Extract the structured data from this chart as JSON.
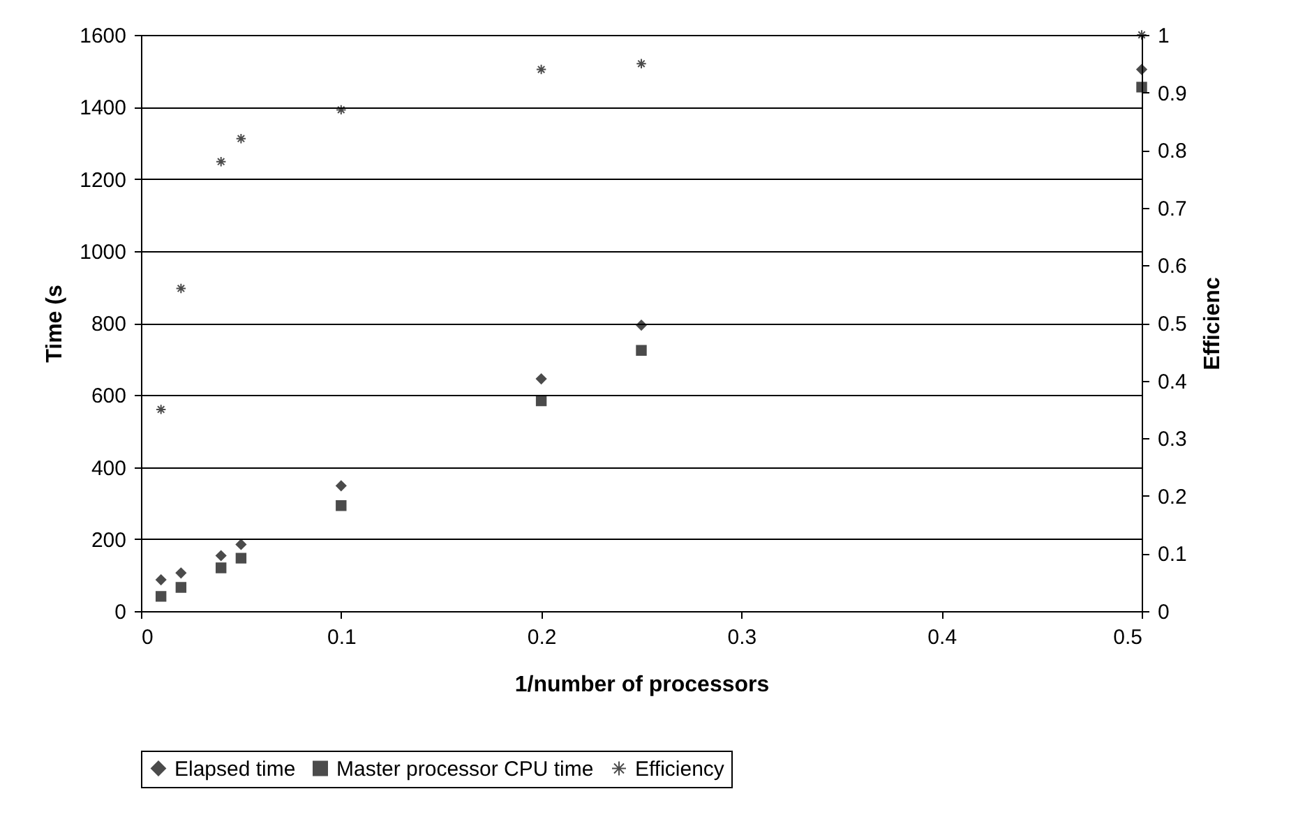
{
  "chart_data": {
    "type": "scatter",
    "xlabel": "1/number of processors",
    "ylabel": "Time (s",
    "y2label": "Efficienc",
    "x": [
      0.01,
      0.02,
      0.04,
      0.05,
      0.1,
      0.2,
      0.25,
      0.5
    ],
    "series": [
      {
        "name": "Elapsed time",
        "color": "#000000",
        "marker": "diamond",
        "values": [
          87,
          106,
          154,
          185,
          348,
          645,
          794,
          1504
        ]
      },
      {
        "name": "Master processor CPU time",
        "color": "#000000",
        "marker": "square",
        "values": [
          41,
          66,
          120,
          147,
          293,
          584,
          724,
          1455
        ]
      },
      {
        "name": "Efficiency",
        "color": "#000000",
        "marker": "cross",
        "axis": "y2",
        "values": [
          0.35,
          0.56,
          0.78,
          0.82,
          0.87,
          0.94,
          0.95,
          1.0
        ]
      }
    ],
    "xlim": [
      0,
      0.5
    ],
    "xticks": [
      0,
      0.1,
      0.2,
      0.3,
      0.4,
      0.5
    ],
    "ylim": [
      0,
      1600
    ],
    "yticks": [
      0,
      200,
      400,
      600,
      800,
      1000,
      1200,
      1400,
      1600
    ],
    "y2lim": [
      0,
      1
    ],
    "y2ticks": [
      0,
      0.1,
      0.2,
      0.3,
      0.4,
      0.5,
      0.6,
      0.7,
      0.8,
      0.9,
      1
    ],
    "grid": "y",
    "legend": "bottom"
  }
}
